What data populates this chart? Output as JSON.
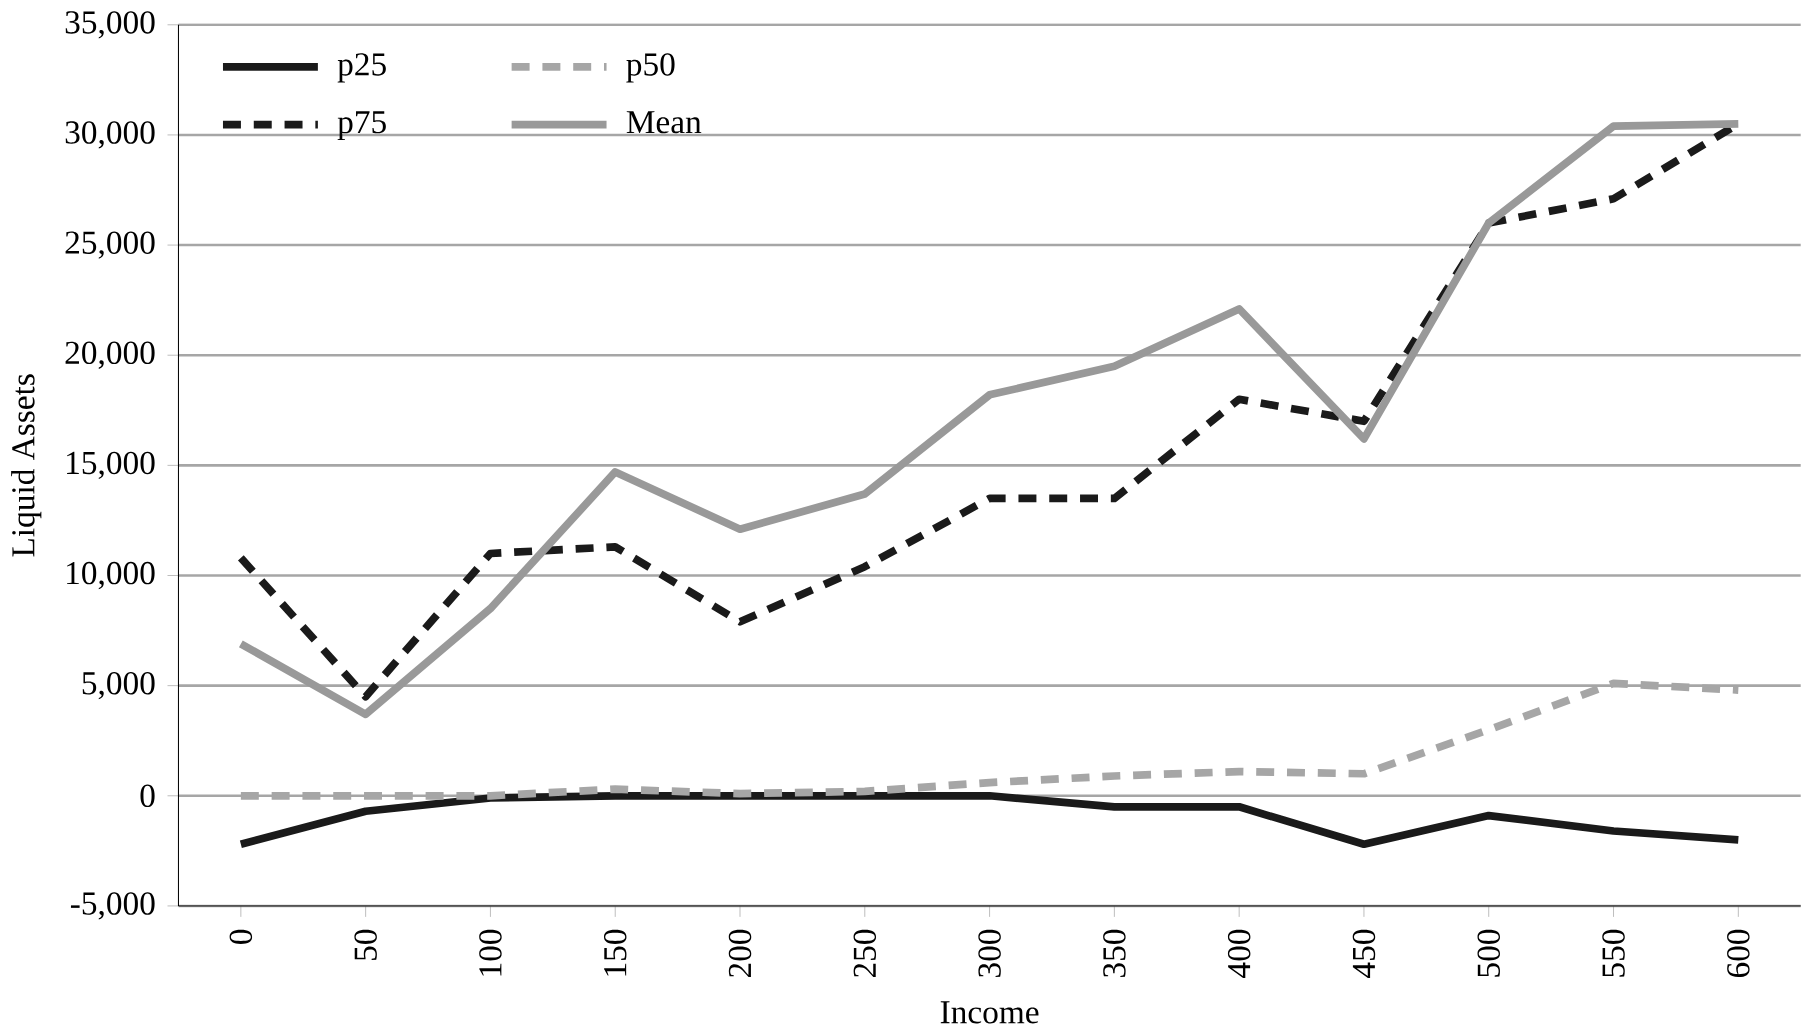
{
  "chart_data": {
    "type": "line",
    "xlabel": "Income",
    "ylabel": "Liquid Assets",
    "categories": [
      "0",
      "50",
      "100",
      "150",
      "200",
      "250",
      "300",
      "350",
      "400",
      "450",
      "500",
      "550",
      "600"
    ],
    "series": [
      {
        "name": "p25",
        "color": "#1a1a1a",
        "line_style": "solid",
        "values": [
          -2200,
          -700,
          -100,
          0,
          0,
          0,
          0,
          -500,
          -500,
          -2200,
          -900,
          -1600,
          -2000
        ]
      },
      {
        "name": "p50",
        "color": "#a6a6a6",
        "line_style": "dashed",
        "values": [
          0,
          0,
          0,
          300,
          100,
          200,
          600,
          900,
          1100,
          1000,
          3000,
          5100,
          4800
        ]
      },
      {
        "name": "p75",
        "color": "#1a1a1a",
        "line_style": "dashed",
        "values": [
          10800,
          4500,
          11000,
          11300,
          7900,
          10400,
          13500,
          13500,
          18000,
          17000,
          26000,
          27100,
          30500
        ]
      },
      {
        "name": "Mean",
        "color": "#999999",
        "line_style": "solid",
        "values": [
          6900,
          3700,
          8500,
          14700,
          12100,
          13700,
          18200,
          19500,
          22100,
          16200,
          26000,
          30400,
          30500
        ]
      }
    ],
    "ylim": [
      -5000,
      35000
    ],
    "yticks": [
      {
        "value": -5000,
        "label": "-5,000"
      },
      {
        "value": 0,
        "label": "0"
      },
      {
        "value": 5000,
        "label": "5,000"
      },
      {
        "value": 10000,
        "label": "10,000"
      },
      {
        "value": 15000,
        "label": "15,000"
      },
      {
        "value": 20000,
        "label": "20,000"
      },
      {
        "value": 25000,
        "label": "25,000"
      },
      {
        "value": 30000,
        "label": "30,000"
      },
      {
        "value": 35000,
        "label": "35,000"
      }
    ],
    "grid": "y",
    "legend": "top left",
    "marker": "none"
  }
}
